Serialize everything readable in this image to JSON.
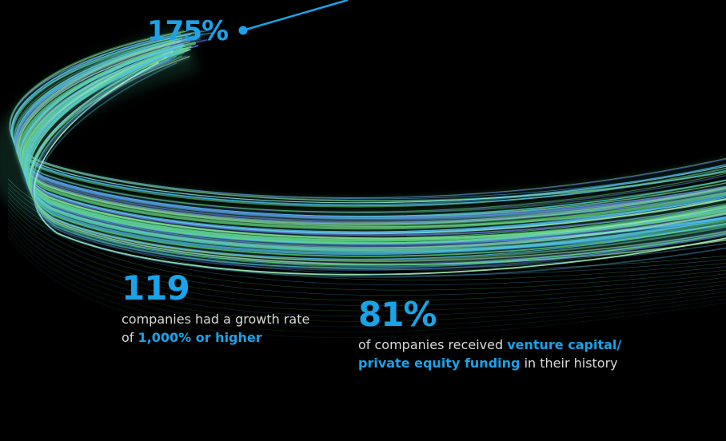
{
  "stats": {
    "growth": {
      "value": "175%"
    },
    "companies": {
      "value": "119",
      "caption_before": "companies had a growth rate",
      "caption_line2_prefix": "of ",
      "caption_highlight": "1,000% or higher"
    },
    "funding": {
      "value": "81%",
      "caption_before": "of companies received ",
      "caption_highlight_line1": "venture capital/",
      "caption_highlight_line2": "private equity funding",
      "caption_after": " in their history"
    }
  },
  "colors": {
    "background": "#000000",
    "accent_blue": "#1aa3e8",
    "caption_text": "#d9d9d9",
    "swoosh_green": "#5fd37a",
    "swoosh_light_green": "#a7f0b8",
    "swoosh_cyan": "#4fc3f7",
    "swoosh_indigo": "#5a63c8"
  }
}
